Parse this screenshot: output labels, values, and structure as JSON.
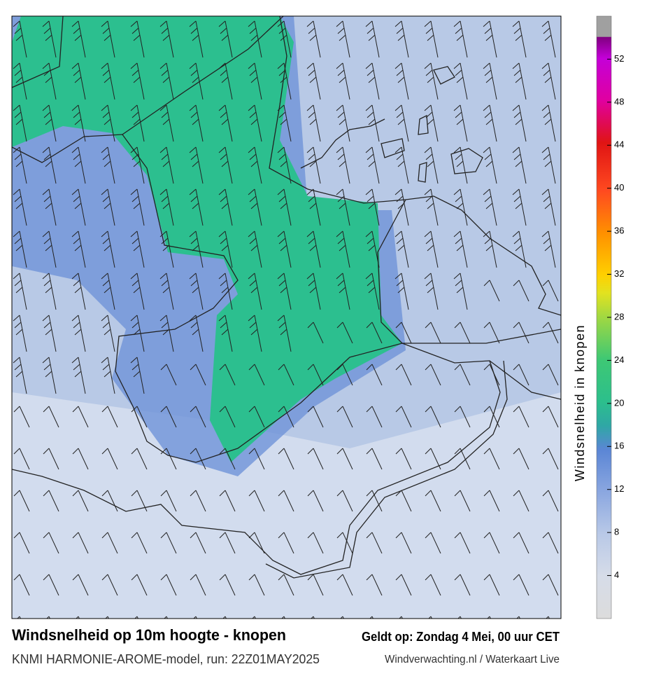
{
  "title": "Windsnelheid op 10m hoogte - knopen",
  "subtitle": "KNMI HARMONIE-AROME-model, run: 22Z01MAY2025",
  "valid": "Geldt op: Zondag 4 Mei, 00 uur CET",
  "source": "Windverwachting.nl / Waterkaart Live",
  "colorbar": {
    "label": "Windsnelheid in knopen",
    "lim": [
      0,
      56
    ],
    "ticks": [
      4,
      8,
      12,
      16,
      20,
      24,
      28,
      32,
      36,
      40,
      44,
      48,
      52
    ]
  }
}
